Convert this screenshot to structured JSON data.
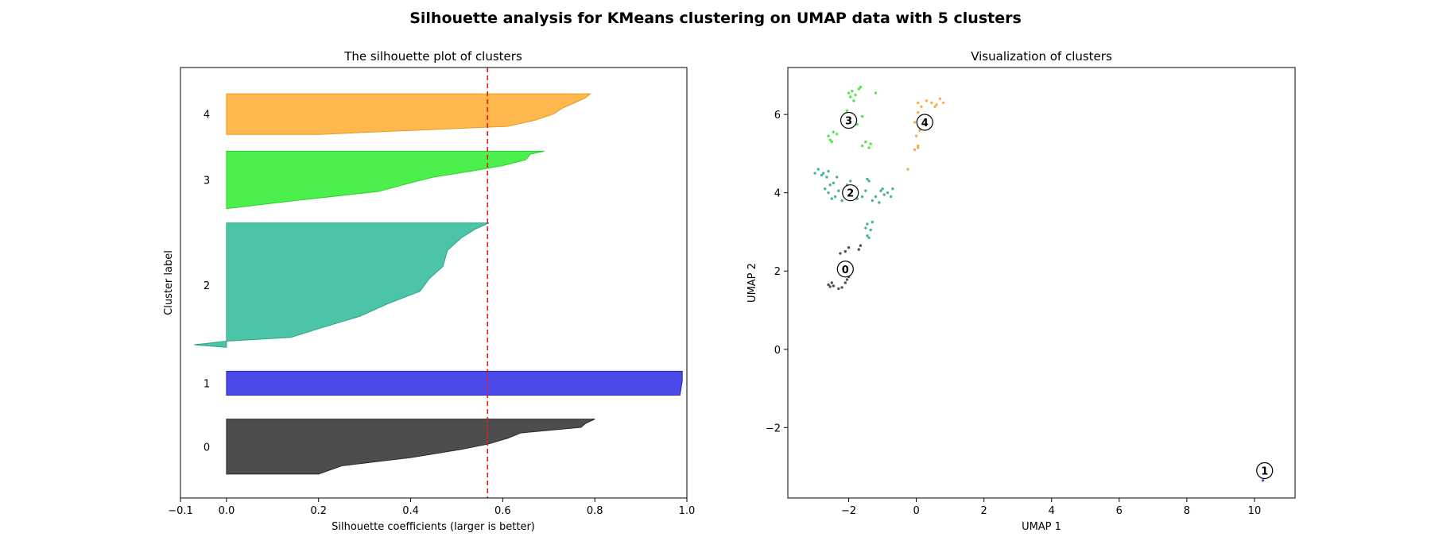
{
  "figure": {
    "suptitle": "Silhouette analysis for KMeans clustering on UMAP data with 5 clusters"
  },
  "chart_data": [
    {
      "type": "area",
      "title": "The silhouette plot of clusters",
      "xlabel": "Silhouette coefficients (larger is better)",
      "ylabel": "Cluster label",
      "xlim": [
        -0.1,
        1.0
      ],
      "xticks": [
        "−0.1",
        "0.0",
        "0.2",
        "0.4",
        "0.6",
        "0.8",
        "1.0"
      ],
      "xtick_values": [
        -0.1,
        0.0,
        0.2,
        0.4,
        0.6,
        0.8,
        1.0
      ],
      "average_silhouette": 0.567,
      "average_line_color": "#e31a1c",
      "clusters": [
        {
          "label": "0",
          "color": "#4d4d4d",
          "edge": "#2b2b2b",
          "y0": 10,
          "y1": 33,
          "profile": [
            [
              0,
              0.2
            ],
            [
              0.15,
              0.25
            ],
            [
              0.3,
              0.4
            ],
            [
              0.45,
              0.51
            ],
            [
              0.55,
              0.57
            ],
            [
              0.65,
              0.61
            ],
            [
              0.75,
              0.64
            ],
            [
              0.85,
              0.77
            ],
            [
              0.92,
              0.78
            ],
            [
              1,
              0.8
            ]
          ]
        },
        {
          "label": "1",
          "color": "#4a4ae8",
          "edge": "#2525c8",
          "y0": 43,
          "y1": 53,
          "profile": [
            [
              0,
              0.985
            ],
            [
              0.6,
              0.99
            ],
            [
              1,
              0.99
            ]
          ]
        },
        {
          "label": "2",
          "color": "#4cc4a8",
          "edge": "#2fa487",
          "y0": 63,
          "y1": 115,
          "profile": [
            [
              0,
              0.0
            ],
            [
              0.02,
              -0.07
            ],
            [
              0.05,
              0.0
            ],
            [
              0.08,
              0.14
            ],
            [
              0.15,
              0.2
            ],
            [
              0.25,
              0.29
            ],
            [
              0.35,
              0.35
            ],
            [
              0.45,
              0.42
            ],
            [
              0.55,
              0.44
            ],
            [
              0.65,
              0.47
            ],
            [
              0.78,
              0.48
            ],
            [
              0.88,
              0.51
            ],
            [
              0.95,
              0.54
            ],
            [
              1,
              0.57
            ]
          ]
        },
        {
          "label": "3",
          "color": "#4cf04c",
          "edge": "#2bd02b",
          "y0": 121,
          "y1": 145,
          "profile": [
            [
              0,
              0.0
            ],
            [
              0.15,
              0.16
            ],
            [
              0.3,
              0.33
            ],
            [
              0.45,
              0.4
            ],
            [
              0.55,
              0.45
            ],
            [
              0.65,
              0.53
            ],
            [
              0.75,
              0.6
            ],
            [
              0.85,
              0.65
            ],
            [
              0.95,
              0.66
            ],
            [
              1,
              0.69
            ]
          ]
        },
        {
          "label": "4",
          "color": "#ffb84d",
          "edge": "#e59a25",
          "y0": 152,
          "y1": 169,
          "profile": [
            [
              0,
              0.2
            ],
            [
              0.1,
              0.4
            ],
            [
              0.2,
              0.61
            ],
            [
              0.35,
              0.67
            ],
            [
              0.5,
              0.71
            ],
            [
              0.65,
              0.73
            ],
            [
              0.8,
              0.76
            ],
            [
              0.9,
              0.78
            ],
            [
              1,
              0.79
            ]
          ]
        }
      ]
    },
    {
      "type": "scatter",
      "title": "Visualization of clusters",
      "xlabel": "UMAP 1",
      "ylabel": "UMAP 2",
      "xlim": [
        -3.8,
        11.2
      ],
      "ylim": [
        -3.8,
        7.2
      ],
      "xticks": [
        "−2",
        "0",
        "2",
        "4",
        "6",
        "8",
        "10"
      ],
      "xtick_values": [
        -2,
        0,
        2,
        4,
        6,
        8,
        10
      ],
      "yticks": [
        "−2",
        "0",
        "2",
        "4",
        "6"
      ],
      "ytick_values": [
        -2,
        0,
        2,
        4,
        6
      ],
      "series": [
        {
          "cluster": "0",
          "color": "#333333",
          "points": [
            [
              -2.6,
              1.65
            ],
            [
              -2.55,
              1.6
            ],
            [
              -2.5,
              1.7
            ],
            [
              -2.45,
              1.62
            ],
            [
              -2.3,
              1.55
            ],
            [
              -2.2,
              1.58
            ],
            [
              -2.1,
              1.7
            ],
            [
              -2.05,
              1.78
            ],
            [
              -2.25,
              2.45
            ],
            [
              -2.1,
              2.5
            ],
            [
              -2.0,
              2.6
            ],
            [
              -1.7,
              2.55
            ],
            [
              -1.65,
              2.65
            ],
            [
              -2.15,
              1.9
            ],
            [
              -2.0,
              1.85
            ]
          ]
        },
        {
          "cluster": "1",
          "color": "#2a2ae0",
          "points": [
            [
              10.15,
              -3.0
            ],
            [
              10.2,
              -3.25
            ],
            [
              10.25,
              -3.35
            ],
            [
              10.3,
              -3.1
            ],
            [
              10.4,
              -3.2
            ]
          ]
        },
        {
          "cluster": "2",
          "color": "#25a78b",
          "points": [
            [
              -3.0,
              4.5
            ],
            [
              -2.9,
              4.6
            ],
            [
              -2.8,
              4.45
            ],
            [
              -2.75,
              4.5
            ],
            [
              -2.65,
              4.4
            ],
            [
              -2.6,
              4.55
            ],
            [
              -2.55,
              4.2
            ],
            [
              -2.7,
              4.1
            ],
            [
              -2.6,
              4.0
            ],
            [
              -2.5,
              3.85
            ],
            [
              -2.4,
              3.9
            ],
            [
              -2.3,
              4.05
            ],
            [
              -2.2,
              3.8
            ],
            [
              -2.1,
              3.95
            ],
            [
              -2.05,
              4.2
            ],
            [
              -1.95,
              4.3
            ],
            [
              -1.8,
              4.1
            ],
            [
              -1.75,
              3.85
            ],
            [
              -1.6,
              3.9
            ],
            [
              -1.5,
              4.05
            ],
            [
              -1.45,
              4.35
            ],
            [
              -1.4,
              4.3
            ],
            [
              -1.3,
              3.8
            ],
            [
              -1.2,
              3.9
            ],
            [
              -1.1,
              3.75
            ],
            [
              -1.05,
              4.05
            ],
            [
              -0.95,
              3.95
            ],
            [
              -0.85,
              4.0
            ],
            [
              -0.75,
              3.9
            ],
            [
              -0.7,
              4.1
            ],
            [
              -1.0,
              4.1
            ],
            [
              -1.5,
              3.1
            ],
            [
              -1.45,
              3.2
            ],
            [
              -1.35,
              3.05
            ],
            [
              -1.4,
              2.85
            ],
            [
              -1.45,
              2.9
            ],
            [
              -1.3,
              3.25
            ],
            [
              -2.45,
              4.25
            ],
            [
              -2.35,
              4.4
            ],
            [
              -2.0,
              4.1
            ]
          ]
        },
        {
          "cluster": "3",
          "color": "#2ee62e",
          "points": [
            [
              -2.0,
              6.55
            ],
            [
              -1.9,
              6.6
            ],
            [
              -1.8,
              6.5
            ],
            [
              -1.7,
              6.65
            ],
            [
              -1.65,
              6.7
            ],
            [
              -1.95,
              6.45
            ],
            [
              -1.85,
              6.35
            ],
            [
              -1.2,
              6.55
            ],
            [
              -2.1,
              6.0
            ],
            [
              -2.05,
              6.1
            ],
            [
              -1.9,
              5.9
            ],
            [
              -1.6,
              5.95
            ],
            [
              -1.75,
              5.75
            ],
            [
              -2.35,
              5.5
            ],
            [
              -2.45,
              5.55
            ],
            [
              -2.55,
              5.35
            ],
            [
              -2.6,
              5.45
            ],
            [
              -2.5,
              5.3
            ],
            [
              -1.6,
              5.2
            ],
            [
              -1.5,
              5.3
            ],
            [
              -1.4,
              5.15
            ],
            [
              -1.35,
              5.25
            ]
          ]
        },
        {
          "cluster": "4",
          "color": "#f5a623",
          "points": [
            [
              0.05,
              6.3
            ],
            [
              0.15,
              6.2
            ],
            [
              0.3,
              6.35
            ],
            [
              0.45,
              6.3
            ],
            [
              0.55,
              6.2
            ],
            [
              0.6,
              6.25
            ],
            [
              0.7,
              6.4
            ],
            [
              0.8,
              6.3
            ],
            [
              0.05,
              6.05
            ],
            [
              -0.05,
              5.8
            ],
            [
              0.1,
              5.6
            ],
            [
              0.0,
              5.45
            ],
            [
              0.05,
              5.2
            ],
            [
              -0.05,
              5.1
            ],
            [
              0.05,
              5.15
            ],
            [
              -0.25,
              4.6
            ]
          ]
        }
      ],
      "centers": [
        {
          "label": "0",
          "x": -2.1,
          "y": 2.05
        },
        {
          "label": "1",
          "x": 10.3,
          "y": -3.1
        },
        {
          "label": "2",
          "x": -1.95,
          "y": 4.0
        },
        {
          "label": "3",
          "x": -2.0,
          "y": 5.85
        },
        {
          "label": "4",
          "x": 0.25,
          "y": 5.8
        }
      ]
    }
  ]
}
